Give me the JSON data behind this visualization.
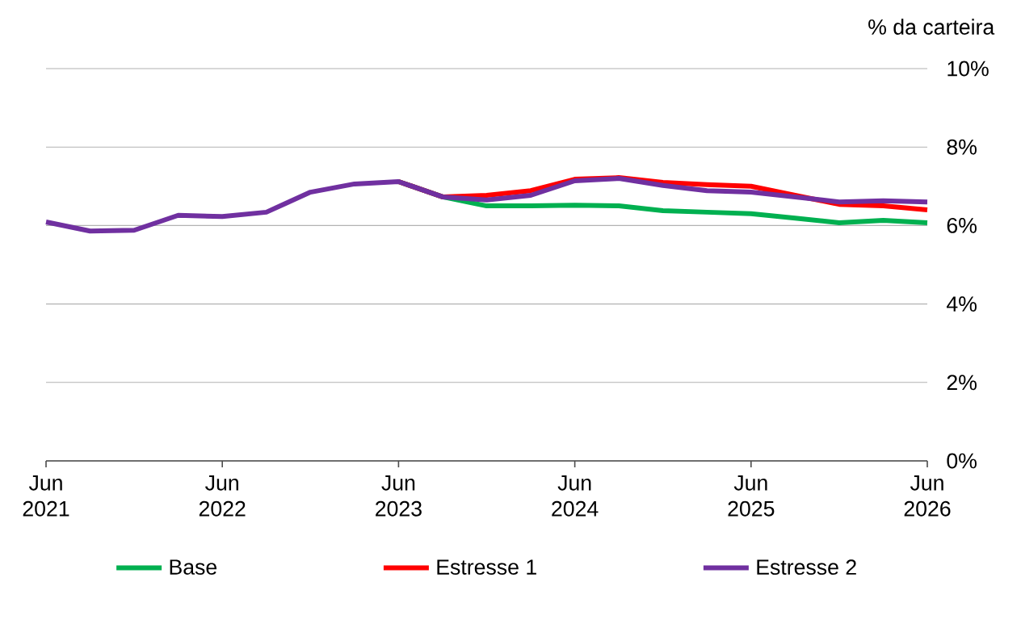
{
  "chart_data": {
    "type": "line",
    "ylabel": "% da carteira",
    "x": [
      "2021-06",
      "2021-09",
      "2021-12",
      "2022-03",
      "2022-06",
      "2022-09",
      "2022-12",
      "2023-03",
      "2023-06",
      "2023-09",
      "2023-12",
      "2024-03",
      "2024-06",
      "2024-09",
      "2024-12",
      "2025-03",
      "2025-06",
      "2025-09",
      "2025-12",
      "2026-03",
      "2026-06"
    ],
    "series": [
      {
        "name": "Base",
        "color": "#00b050",
        "values": [
          null,
          null,
          null,
          null,
          null,
          null,
          null,
          null,
          7.12,
          6.73,
          6.5,
          6.5,
          6.52,
          6.5,
          6.38,
          6.34,
          6.3,
          6.19,
          6.07,
          6.13,
          6.07
        ]
      },
      {
        "name": "Estresse 1",
        "color": "#ff0000",
        "values": [
          null,
          null,
          null,
          null,
          null,
          null,
          null,
          null,
          7.12,
          6.73,
          6.77,
          6.89,
          7.18,
          7.22,
          7.1,
          7.04,
          7.0,
          6.77,
          6.54,
          6.5,
          6.4
        ]
      },
      {
        "name": "Estresse 2",
        "color": "#7030a0",
        "values": [
          6.09,
          5.86,
          5.88,
          6.26,
          6.23,
          6.34,
          6.85,
          7.06,
          7.12,
          6.73,
          6.65,
          6.77,
          7.14,
          7.2,
          7.02,
          6.89,
          6.85,
          6.73,
          6.6,
          6.63,
          6.6
        ]
      }
    ],
    "xlim": [
      "2021-06",
      "2026-06"
    ],
    "xticks": [
      {
        "value": "2021-06",
        "label": "Jun 2021"
      },
      {
        "value": "2022-06",
        "label": "Jun 2022"
      },
      {
        "value": "2023-06",
        "label": "Jun 2023"
      },
      {
        "value": "2024-06",
        "label": "Jun 2024"
      },
      {
        "value": "2025-06",
        "label": "Jun 2025"
      },
      {
        "value": "2026-06",
        "label": "Jun 2026"
      }
    ],
    "ylim": [
      0,
      10
    ],
    "yticks": [
      {
        "value": 0,
        "label": "0%"
      },
      {
        "value": 2,
        "label": "2%"
      },
      {
        "value": 4,
        "label": "4%"
      },
      {
        "value": 6,
        "label": "6%"
      },
      {
        "value": 8,
        "label": "8%"
      },
      {
        "value": 10,
        "label": "10%"
      }
    ],
    "grid": "y",
    "legend": "bottom",
    "marker": "none",
    "line_style": "solid"
  }
}
